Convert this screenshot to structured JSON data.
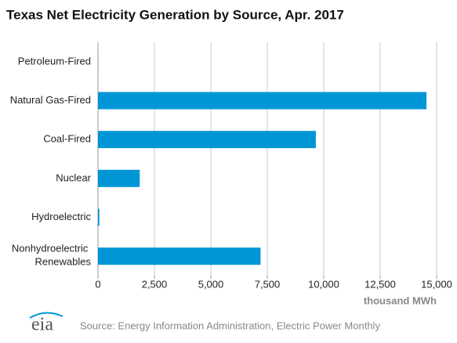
{
  "chart_data": {
    "type": "bar",
    "orientation": "horizontal",
    "title": "Texas Net Electricity Generation by Source, Apr. 2017",
    "categories": [
      "Petroleum-Fired",
      "Natural Gas-Fired",
      "Coal-Fired",
      "Nuclear",
      "Hydroelectric",
      "Nonhydroelectric Renewables"
    ],
    "values": [
      5,
      14550,
      9650,
      1850,
      60,
      7200
    ],
    "color": "#0096d6",
    "xlim": [
      0,
      15000
    ],
    "xticks": [
      0,
      {
        "value": 2500,
        "label": "2,500"
      },
      {
        "value": 5000,
        "label": "5,000"
      },
      {
        "value": 7500,
        "label": "7,500"
      },
      {
        "value": 10000,
        "label": "10,000"
      },
      {
        "value": 12500,
        "label": "12,500"
      },
      {
        "value": 15000,
        "label": "15,000"
      }
    ],
    "x_label": "thousand MWh",
    "grid": true,
    "source": "Source: Energy Information Administration, Electric Power Monthly",
    "logo": "eia"
  }
}
